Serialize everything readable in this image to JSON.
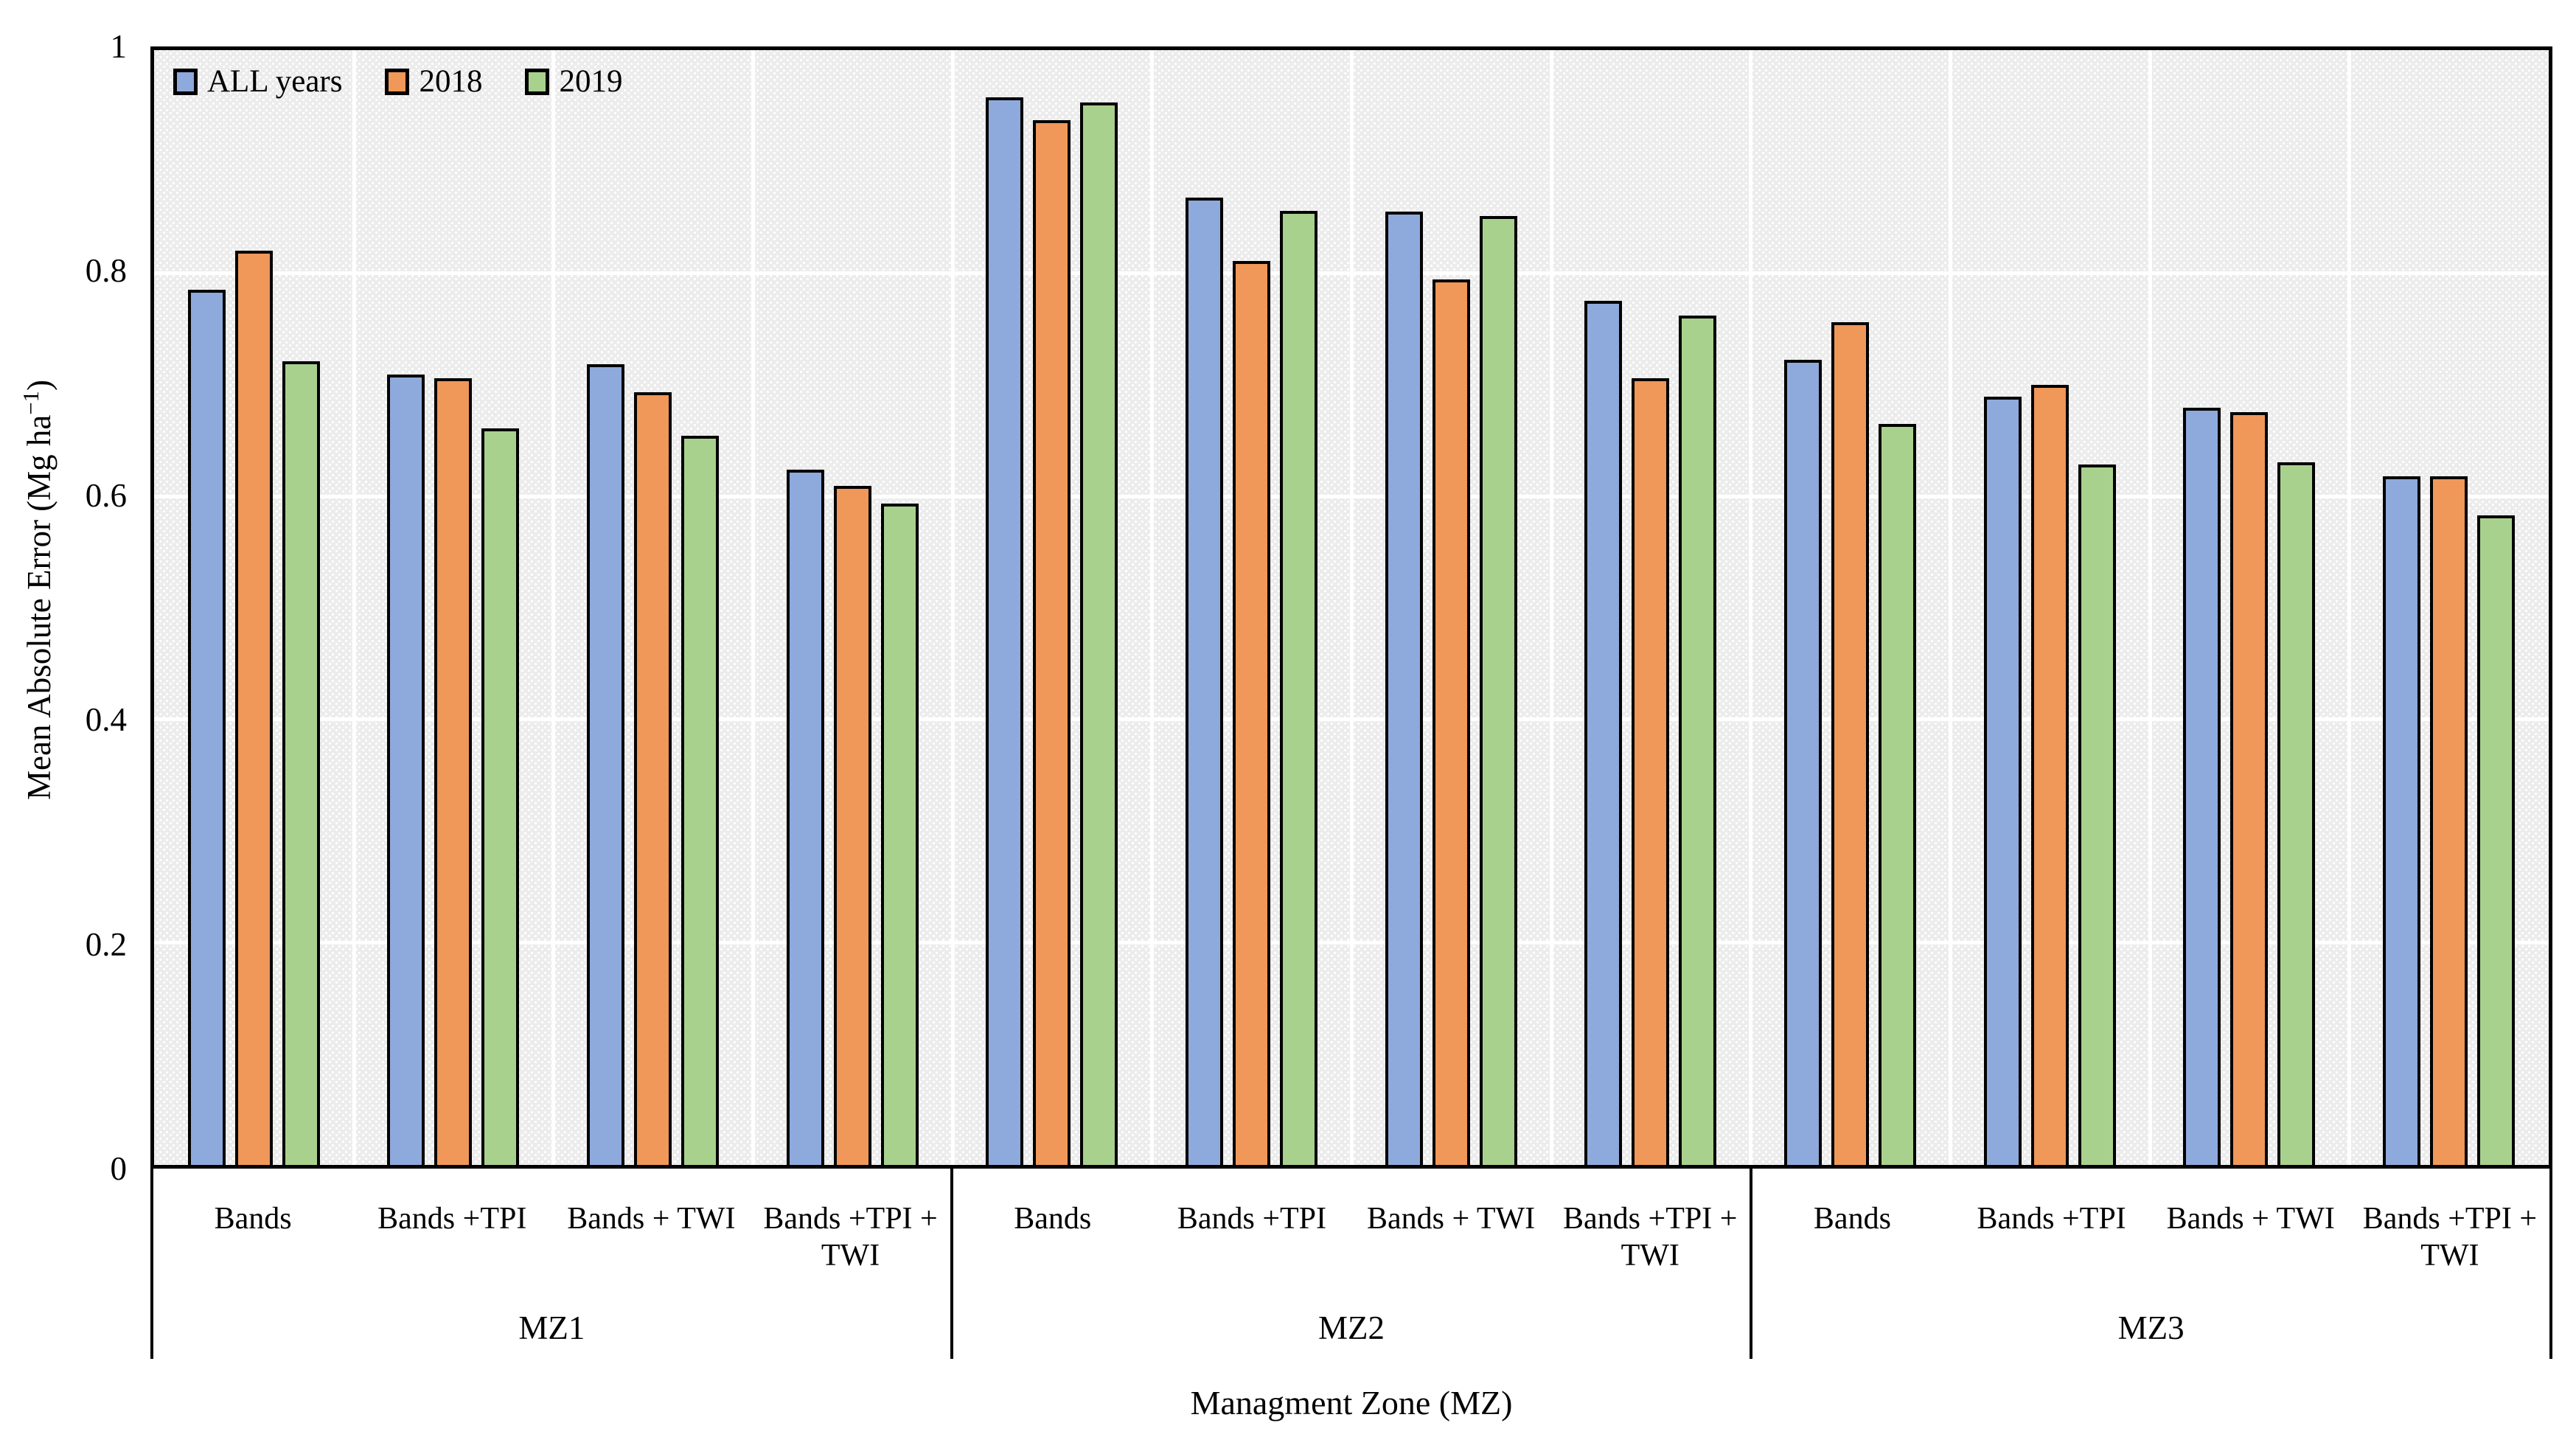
{
  "chart_data": {
    "type": "bar",
    "title": "",
    "xlabel": "Managment Zone (MZ)",
    "ylabel": "Mean Absolute Error (Mg ha⁻¹)",
    "ylabel_parts": [
      "Mean Absolute Error (Mg ha",
      "−1",
      ")"
    ],
    "ylim": [
      0,
      1
    ],
    "ytick_labels": [
      "0",
      "0.2",
      "0.4",
      "0.6",
      "0.8",
      "1"
    ],
    "ytick_values": [
      0,
      0.2,
      0.4,
      0.6,
      0.8,
      1
    ],
    "grid": true,
    "gridline_color": "#ffffff",
    "plot_background": "#ececec",
    "bar_outline_color": "#000000",
    "legend_position": "top-left-inside",
    "zones": [
      {
        "label": "MZ1",
        "categories": [
          "Bands",
          "Bands +TPI",
          "Bands + TWI",
          "Bands +TPI + TWI"
        ]
      },
      {
        "label": "MZ2",
        "categories": [
          "Bands",
          "Bands +TPI",
          "Bands + TWI",
          "Bands +TPI + TWI"
        ]
      },
      {
        "label": "MZ3",
        "categories": [
          "Bands",
          "Bands +TPI",
          "Bands + TWI",
          "Bands +TPI + TWI"
        ]
      }
    ],
    "series": [
      {
        "name": "ALL years",
        "color": "#8EA9DB",
        "values": [
          0.785,
          0.709,
          0.718,
          0.624,
          0.958,
          0.868,
          0.855,
          0.775,
          0.722,
          0.689,
          0.679,
          0.618
        ]
      },
      {
        "name": "2018",
        "color": "#F0975A",
        "values": [
          0.82,
          0.706,
          0.693,
          0.609,
          0.937,
          0.811,
          0.794,
          0.706,
          0.756,
          0.7,
          0.675,
          0.618
        ]
      },
      {
        "name": "2019",
        "color": "#A9D18E",
        "values": [
          0.721,
          0.661,
          0.654,
          0.593,
          0.953,
          0.856,
          0.851,
          0.762,
          0.665,
          0.628,
          0.63,
          0.583
        ]
      }
    ]
  }
}
